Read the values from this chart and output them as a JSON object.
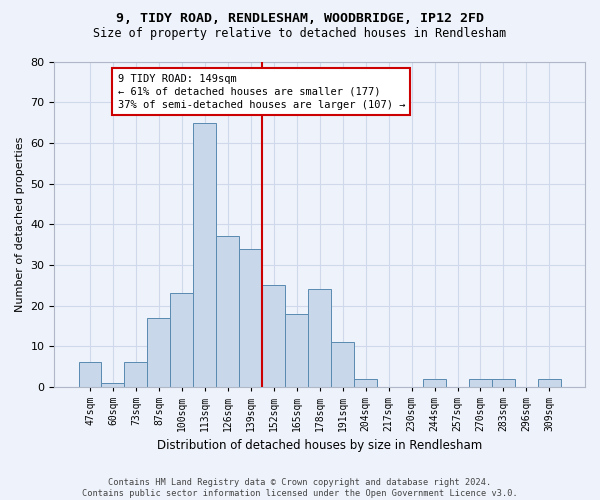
{
  "title_line1": "9, TIDY ROAD, RENDLESHAM, WOODBRIDGE, IP12 2FD",
  "title_line2": "Size of property relative to detached houses in Rendlesham",
  "xlabel": "Distribution of detached houses by size in Rendlesham",
  "ylabel": "Number of detached properties",
  "footer_line1": "Contains HM Land Registry data © Crown copyright and database right 2024.",
  "footer_line2": "Contains public sector information licensed under the Open Government Licence v3.0.",
  "bar_labels": [
    "47sqm",
    "60sqm",
    "73sqm",
    "87sqm",
    "100sqm",
    "113sqm",
    "126sqm",
    "139sqm",
    "152sqm",
    "165sqm",
    "178sqm",
    "191sqm",
    "204sqm",
    "217sqm",
    "230sqm",
    "244sqm",
    "257sqm",
    "270sqm",
    "283sqm",
    "296sqm",
    "309sqm"
  ],
  "bar_values": [
    6,
    1,
    6,
    17,
    23,
    65,
    37,
    34,
    25,
    18,
    24,
    11,
    2,
    0,
    0,
    2,
    0,
    2,
    2,
    0,
    2
  ],
  "bar_color": "#c8d8ea",
  "bar_edgecolor": "#5a8ab0",
  "vline_color": "#cc0000",
  "vline_x": 7.5,
  "annotation_text_line1": "9 TIDY ROAD: 149sqm",
  "annotation_text_line2": "← 61% of detached houses are smaller (177)",
  "annotation_text_line3": "37% of semi-detached houses are larger (107) →",
  "annotation_box_color": "#ffffff",
  "annotation_box_edgecolor": "#cc0000",
  "ylim": [
    0,
    80
  ],
  "yticks": [
    0,
    10,
    20,
    30,
    40,
    50,
    60,
    70,
    80
  ],
  "grid_color": "#d0d8ec",
  "bg_color": "#eef2fa",
  "title1_fontsize": 9.5,
  "title2_fontsize": 8.5,
  "ylabel_fontsize": 8,
  "xlabel_fontsize": 8.5,
  "tick_fontsize": 7,
  "annot_fontsize": 7.5,
  "footer_fontsize": 6.2
}
